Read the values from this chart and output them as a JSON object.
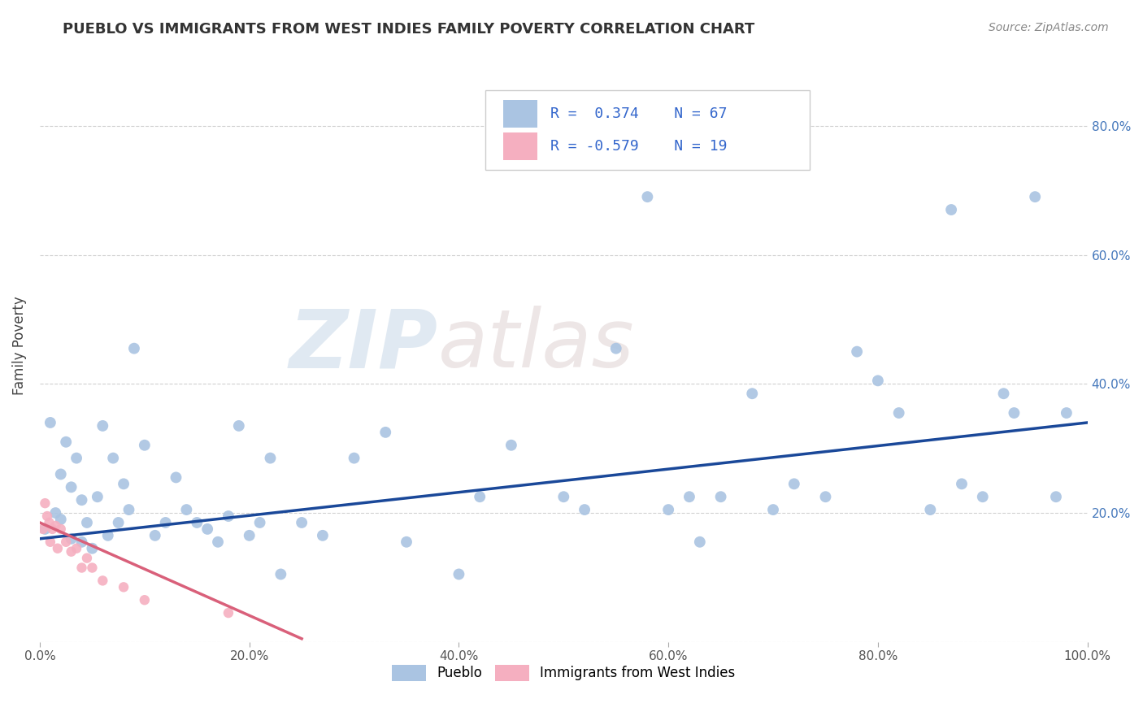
{
  "title": "PUEBLO VS IMMIGRANTS FROM WEST INDIES FAMILY POVERTY CORRELATION CHART",
  "source": "Source: ZipAtlas.com",
  "ylabel": "Family Poverty",
  "xlim": [
    0.0,
    1.0
  ],
  "ylim": [
    0.0,
    0.92
  ],
  "xticks": [
    0.0,
    0.2,
    0.4,
    0.6,
    0.8,
    1.0
  ],
  "yticks": [
    0.0,
    0.2,
    0.4,
    0.6,
    0.8
  ],
  "xtick_labels": [
    "0.0%",
    "20.0%",
    "40.0%",
    "60.0%",
    "80.0%",
    "100.0%"
  ],
  "ytick_labels_right": [
    "",
    "20.0%",
    "40.0%",
    "60.0%",
    "80.0%"
  ],
  "pueblo_color": "#aac4e2",
  "west_indies_color": "#f5afc0",
  "pueblo_line_color": "#1a4899",
  "west_indies_line_color": "#d9607a",
  "pueblo_R": 0.374,
  "pueblo_N": 67,
  "west_indies_R": -0.579,
  "west_indies_N": 19,
  "pueblo_x": [
    0.005,
    0.01,
    0.015,
    0.02,
    0.02,
    0.025,
    0.03,
    0.03,
    0.035,
    0.04,
    0.04,
    0.045,
    0.05,
    0.055,
    0.06,
    0.065,
    0.07,
    0.075,
    0.08,
    0.085,
    0.09,
    0.1,
    0.11,
    0.12,
    0.13,
    0.14,
    0.15,
    0.16,
    0.17,
    0.18,
    0.19,
    0.2,
    0.21,
    0.22,
    0.23,
    0.25,
    0.27,
    0.3,
    0.33,
    0.35,
    0.4,
    0.42,
    0.45,
    0.5,
    0.52,
    0.55,
    0.58,
    0.6,
    0.62,
    0.63,
    0.65,
    0.68,
    0.7,
    0.72,
    0.75,
    0.78,
    0.8,
    0.82,
    0.85,
    0.87,
    0.88,
    0.9,
    0.92,
    0.93,
    0.95,
    0.97,
    0.98
  ],
  "pueblo_y": [
    0.175,
    0.34,
    0.2,
    0.26,
    0.19,
    0.31,
    0.24,
    0.16,
    0.285,
    0.22,
    0.155,
    0.185,
    0.145,
    0.225,
    0.335,
    0.165,
    0.285,
    0.185,
    0.245,
    0.205,
    0.455,
    0.305,
    0.165,
    0.185,
    0.255,
    0.205,
    0.185,
    0.175,
    0.155,
    0.195,
    0.335,
    0.165,
    0.185,
    0.285,
    0.105,
    0.185,
    0.165,
    0.285,
    0.325,
    0.155,
    0.105,
    0.225,
    0.305,
    0.225,
    0.205,
    0.455,
    0.69,
    0.205,
    0.225,
    0.155,
    0.225,
    0.385,
    0.205,
    0.245,
    0.225,
    0.45,
    0.405,
    0.355,
    0.205,
    0.67,
    0.245,
    0.225,
    0.385,
    0.355,
    0.69,
    0.225,
    0.355
  ],
  "west_indies_x": [
    0.003,
    0.005,
    0.007,
    0.009,
    0.01,
    0.012,
    0.015,
    0.017,
    0.02,
    0.025,
    0.03,
    0.035,
    0.04,
    0.045,
    0.05,
    0.06,
    0.08,
    0.1,
    0.18
  ],
  "west_indies_y": [
    0.175,
    0.215,
    0.195,
    0.185,
    0.155,
    0.175,
    0.18,
    0.145,
    0.175,
    0.155,
    0.14,
    0.145,
    0.115,
    0.13,
    0.115,
    0.095,
    0.085,
    0.065,
    0.045
  ],
  "pueblo_line_x": [
    0.0,
    1.0
  ],
  "pueblo_line_y": [
    0.16,
    0.34
  ],
  "west_indies_line_x": [
    0.0,
    0.25
  ],
  "west_indies_line_y": [
    0.185,
    0.005
  ],
  "background_color": "#ffffff",
  "grid_color": "#cccccc",
  "title_color": "#444444"
}
